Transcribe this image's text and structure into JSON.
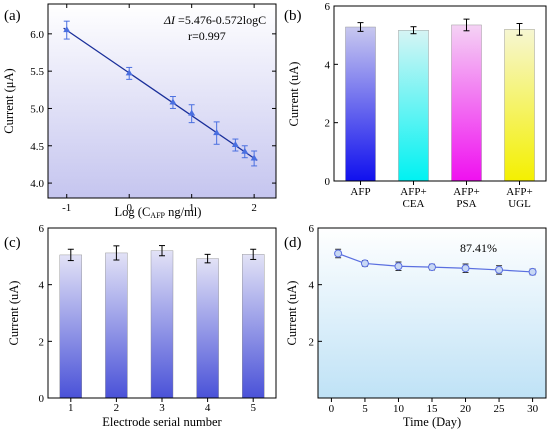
{
  "chart_data": [
    {
      "panel": "(a)",
      "type": "scatter",
      "ylabel": "Current (μA)",
      "xlabel": "Log (C",
      "xlabel_sub": "AFP",
      "xlabel_tail": " ng/ml)",
      "xlim": [
        -1.3,
        2.35
      ],
      "ylim": [
        3.8,
        6.4
      ],
      "xticks": [
        "-1",
        "0",
        "1",
        "2"
      ],
      "yticks": [
        "4.0",
        "4.5",
        "5.0",
        "5.5",
        "6.0"
      ],
      "points": [
        {
          "x": -1.0,
          "y": 6.05,
          "err": 0.12
        },
        {
          "x": 0.0,
          "y": 5.47,
          "err": 0.08
        },
        {
          "x": 0.7,
          "y": 5.08,
          "err": 0.08
        },
        {
          "x": 1.0,
          "y": 4.93,
          "err": 0.12
        },
        {
          "x": 1.4,
          "y": 4.67,
          "err": 0.15
        },
        {
          "x": 1.7,
          "y": 4.51,
          "err": 0.08
        },
        {
          "x": 1.85,
          "y": 4.42,
          "err": 0.08
        },
        {
          "x": 2.0,
          "y": 4.33,
          "err": 0.1
        }
      ],
      "fit": {
        "intercept": 5.476,
        "slope": -0.572
      },
      "equation_sym": "ΔI",
      "equation": " =5.476-0.572logC",
      "r_text": "r=0.997",
      "colors": {
        "point": "#4a6fe0",
        "fit": "#1a2f9a",
        "bg_top": "#ffffff",
        "bg_bottom": "#c5c5ef"
      }
    },
    {
      "panel": "(b)",
      "type": "bar",
      "ylabel": "Current (uA)",
      "ylim": [
        0,
        6
      ],
      "yticks": [
        "0",
        "2",
        "4",
        "6"
      ],
      "categories": [
        [
          "AFP"
        ],
        [
          "AFP+",
          "CEA"
        ],
        [
          "AFP+",
          "PSA"
        ],
        [
          "AFP+",
          "UGL"
        ]
      ],
      "values": [
        5.28,
        5.17,
        5.35,
        5.2
      ],
      "errors": [
        0.15,
        0.12,
        0.2,
        0.2
      ],
      "colors": [
        {
          "top": "#c8c8ef",
          "bottom": "#1010ee"
        },
        {
          "top": "#d6f4f4",
          "bottom": "#00f2f2"
        },
        {
          "top": "#f4d2f4",
          "bottom": "#f010f0"
        },
        {
          "top": "#f6f6d2",
          "bottom": "#f4f000"
        }
      ]
    },
    {
      "panel": "(c)",
      "type": "bar",
      "ylabel": "Current (uA)",
      "xlabel": "Electrode serial number",
      "ylim": [
        0,
        6
      ],
      "yticks": [
        "0",
        "2",
        "4",
        "6"
      ],
      "categories": [
        [
          "1"
        ],
        [
          "2"
        ],
        [
          "3"
        ],
        [
          "4"
        ],
        [
          "5"
        ]
      ],
      "values": [
        5.05,
        5.12,
        5.2,
        4.92,
        5.07
      ],
      "errors": [
        0.2,
        0.25,
        0.18,
        0.15,
        0.18
      ],
      "colors": [
        {
          "top": "#e2e2f6",
          "bottom": "#4a52d8"
        }
      ]
    },
    {
      "panel": "(d)",
      "type": "line",
      "ylabel": "Current (uA)",
      "xlabel": "Time (Day)",
      "xlim": [
        -2,
        32
      ],
      "ylim": [
        0,
        6
      ],
      "xticks": [
        "0",
        "5",
        "10",
        "15",
        "20",
        "25",
        "30"
      ],
      "yticks": [
        "2",
        "4",
        "6"
      ],
      "x": [
        1,
        5,
        10,
        15,
        20,
        25,
        30
      ],
      "y": [
        5.1,
        4.75,
        4.65,
        4.62,
        4.58,
        4.52,
        4.45
      ],
      "errors": [
        0.15,
        0.1,
        0.15,
        0.1,
        0.15,
        0.15,
        0.1
      ],
      "annotation": "87.41%",
      "colors": {
        "line": "#5a6fe0",
        "marker": "#c8d8f4",
        "bg_top": "#ffffff",
        "bg_bottom": "#bfe2f6"
      }
    }
  ]
}
